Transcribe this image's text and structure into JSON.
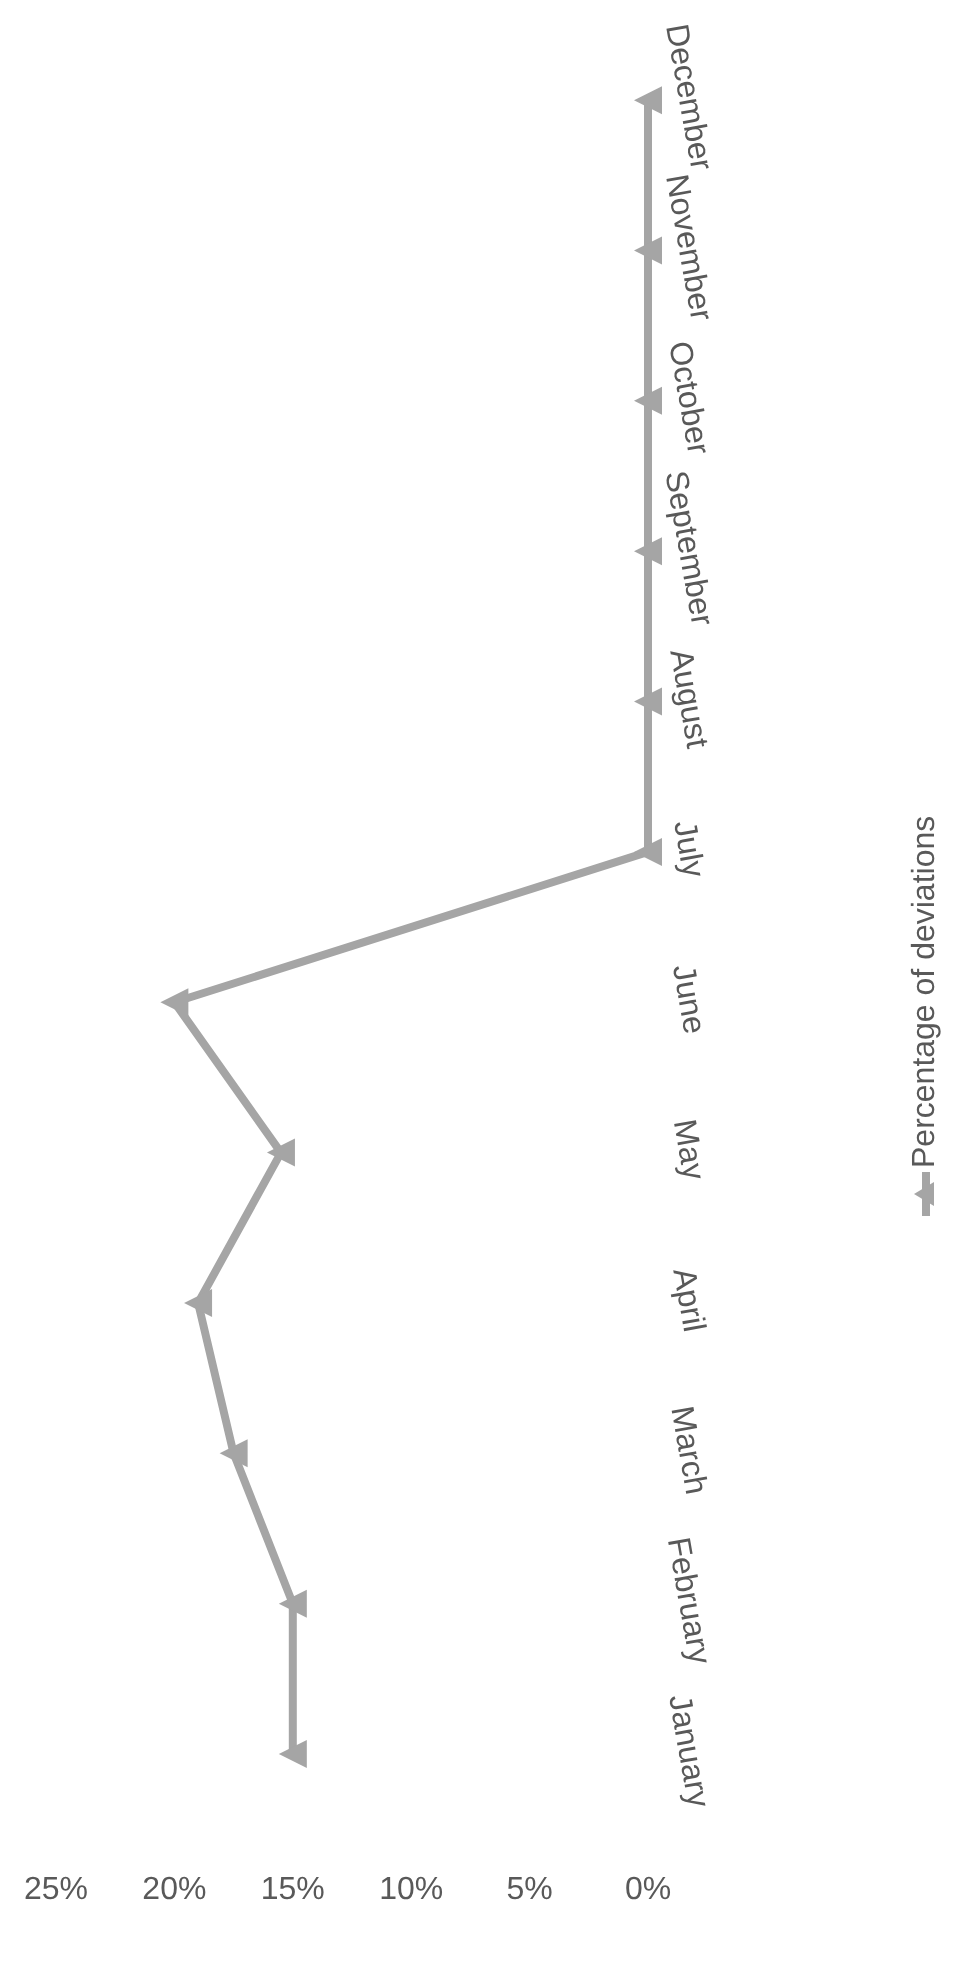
{
  "chart_data": {
    "type": "line",
    "orientation": "horizontal",
    "categories": [
      "December",
      "November",
      "October",
      "September",
      "August",
      "July",
      "June",
      "May",
      "April",
      "March",
      "February",
      "January"
    ],
    "series": [
      {
        "name": "Percentage of deviations",
        "color": "#a5a5a5",
        "values": [
          0,
          0,
          0,
          0,
          0,
          0,
          20,
          15.5,
          19,
          17.5,
          15,
          15
        ]
      }
    ],
    "xlim": [
      25,
      0
    ],
    "xticks": [
      {
        "value": 0,
        "label": "0%"
      },
      {
        "value": 5,
        "label": "5%"
      },
      {
        "value": 10,
        "label": "10%"
      },
      {
        "value": 15,
        "label": "15%"
      },
      {
        "value": 20,
        "label": "20%"
      },
      {
        "value": 25,
        "label": "25%"
      }
    ],
    "grid": false,
    "legend": "right",
    "marker": "triangle",
    "line_style": "solid"
  }
}
